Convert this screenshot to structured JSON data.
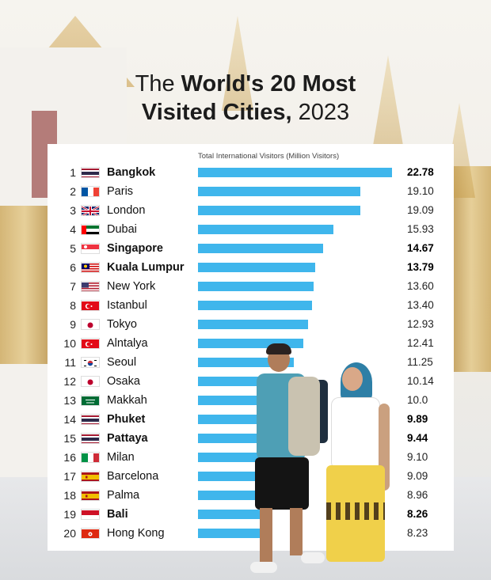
{
  "title": {
    "prefix": "The ",
    "bold_line1": "World's 20 Most",
    "bold_line2": "Visited Cities,",
    "year": " 2023"
  },
  "chart_data": {
    "type": "bar",
    "orientation": "horizontal",
    "subtitle": "Total International Visitors (Million Visitors)",
    "xlim": [
      0,
      22.78
    ],
    "bar_color": "#3fb6ec",
    "rows": [
      {
        "rank": "1",
        "city": "Bangkok",
        "value": 22.78,
        "label": "22.78",
        "bold": true,
        "flag": "thailand"
      },
      {
        "rank": "2",
        "city": "Paris",
        "value": 19.1,
        "label": "19.10",
        "bold": false,
        "flag": "france"
      },
      {
        "rank": "3",
        "city": "London",
        "value": 19.09,
        "label": "19.09",
        "bold": false,
        "flag": "uk"
      },
      {
        "rank": "4",
        "city": "Dubai",
        "value": 15.93,
        "label": "15.93",
        "bold": false,
        "flag": "uae"
      },
      {
        "rank": "5",
        "city": "Singapore",
        "value": 14.67,
        "label": "14.67",
        "bold": true,
        "flag": "singapore"
      },
      {
        "rank": "6",
        "city": "Kuala Lumpur",
        "value": 13.79,
        "label": "13.79",
        "bold": true,
        "flag": "malaysia"
      },
      {
        "rank": "7",
        "city": "New York",
        "value": 13.6,
        "label": "13.60",
        "bold": false,
        "flag": "usa"
      },
      {
        "rank": "8",
        "city": "Istanbul",
        "value": 13.4,
        "label": "13.40",
        "bold": false,
        "flag": "turkey"
      },
      {
        "rank": "9",
        "city": "Tokyo",
        "value": 12.93,
        "label": "12.93",
        "bold": false,
        "flag": "japan"
      },
      {
        "rank": "10",
        "city": "Alntalya",
        "value": 12.41,
        "label": "12.41",
        "bold": false,
        "flag": "turkey"
      },
      {
        "rank": "11",
        "city": "Seoul",
        "value": 11.25,
        "label": "11.25",
        "bold": false,
        "flag": "south-korea"
      },
      {
        "rank": "12",
        "city": "Osaka",
        "value": 10.14,
        "label": "10.14",
        "bold": false,
        "flag": "japan"
      },
      {
        "rank": "13",
        "city": "Makkah",
        "value": 10.0,
        "label": "10.0",
        "bold": false,
        "flag": "saudi-arabia"
      },
      {
        "rank": "14",
        "city": "Phuket",
        "value": 9.89,
        "label": "9.89",
        "bold": true,
        "flag": "thailand"
      },
      {
        "rank": "15",
        "city": "Pattaya",
        "value": 9.44,
        "label": "9.44",
        "bold": true,
        "flag": "thailand"
      },
      {
        "rank": "16",
        "city": "Milan",
        "value": 9.1,
        "label": "9.10",
        "bold": false,
        "flag": "italy"
      },
      {
        "rank": "17",
        "city": "Barcelona",
        "value": 9.09,
        "label": "9.09",
        "bold": false,
        "flag": "spain"
      },
      {
        "rank": "18",
        "city": "Palma",
        "value": 8.96,
        "label": "8.96",
        "bold": false,
        "flag": "spain"
      },
      {
        "rank": "19",
        "city": "Bali",
        "value": 8.26,
        "label": "8.26",
        "bold": true,
        "flag": "indonesia"
      },
      {
        "rank": "20",
        "city": "Hong Kong",
        "value": 8.23,
        "label": "8.23",
        "bold": false,
        "flag": "hong-kong"
      }
    ]
  }
}
